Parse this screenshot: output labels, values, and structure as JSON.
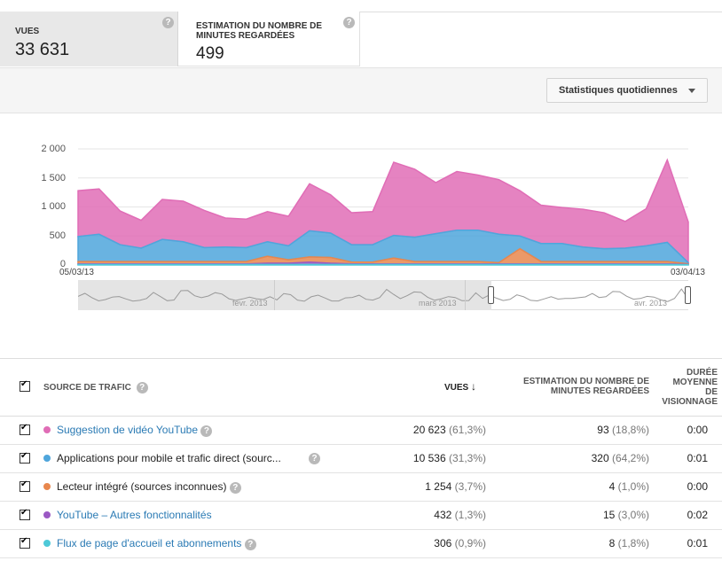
{
  "metrics": {
    "views": {
      "label": "VUES",
      "value": "33 631"
    },
    "minutes": {
      "label_line1": "ESTIMATION DU NOMBRE DE",
      "label_line2": "MINUTES REGARDÉES",
      "value": "499"
    }
  },
  "toolbar": {
    "period_dropdown": "Statistiques quotidiennes"
  },
  "chart": {
    "y_ticks": [
      "2 000",
      "1 500",
      "1 000",
      "500",
      "0"
    ],
    "x_start": "05/03/13",
    "x_end": "03/04/13",
    "timeline_labels": [
      "févr. 2013",
      "mars 2013",
      "avr. 2013"
    ]
  },
  "chart_data": {
    "type": "area",
    "x": [
      "05/03",
      "06/03",
      "07/03",
      "08/03",
      "09/03",
      "10/03",
      "11/03",
      "12/03",
      "13/03",
      "14/03",
      "15/03",
      "16/03",
      "17/03",
      "18/03",
      "19/03",
      "20/03",
      "21/03",
      "22/03",
      "23/03",
      "24/03",
      "25/03",
      "26/03",
      "27/03",
      "28/03",
      "29/03",
      "30/03",
      "31/03",
      "01/04",
      "02/04",
      "03/04"
    ],
    "stacked": true,
    "ylim": [
      0,
      2000
    ],
    "series": [
      {
        "name": "Suggestion de vidéo YouTube",
        "color": "#e06db6",
        "values": [
          790,
          780,
          580,
          480,
          690,
          700,
          640,
          500,
          490,
          520,
          510,
          810,
          660,
          550,
          570,
          1260,
          1170,
          880,
          1010,
          950,
          940,
          780,
          660,
          620,
          650,
          620,
          460,
          640,
          1420,
          700
        ]
      },
      {
        "name": "Applications pour mobile et trafic direct (sources inconnues)",
        "color": "#4fa6dc",
        "values": [
          430,
          470,
          290,
          230,
          380,
          340,
          240,
          250,
          240,
          250,
          240,
          450,
          420,
          300,
          300,
          390,
          420,
          480,
          540,
          540,
          490,
          220,
          310,
          310,
          250,
          220,
          230,
          270,
          330,
          20
        ]
      },
      {
        "name": "Lecteur intégré (sources inconnues)",
        "color": "#e8874d",
        "values": [
          40,
          40,
          40,
          40,
          40,
          40,
          40,
          40,
          40,
          120,
          60,
          90,
          100,
          30,
          30,
          100,
          40,
          40,
          40,
          40,
          20,
          260,
          40,
          40,
          40,
          40,
          40,
          40,
          40,
          10
        ]
      },
      {
        "name": "YouTube – Autres fonctionnalités",
        "color": "#9b59c4",
        "values": [
          10,
          10,
          10,
          10,
          10,
          10,
          10,
          10,
          10,
          20,
          20,
          40,
          20,
          10,
          10,
          10,
          10,
          10,
          10,
          10,
          10,
          10,
          10,
          10,
          10,
          10,
          10,
          10,
          10,
          5
        ]
      },
      {
        "name": "Flux de page d'accueil et abonnements",
        "color": "#4ec9d8",
        "values": [
          10,
          10,
          10,
          10,
          10,
          10,
          10,
          10,
          10,
          10,
          10,
          10,
          10,
          10,
          10,
          10,
          10,
          10,
          10,
          10,
          10,
          10,
          10,
          10,
          10,
          10,
          10,
          10,
          10,
          5
        ]
      }
    ]
  },
  "table": {
    "headers": {
      "source": "SOURCE DE TRAFIC",
      "views": "VUES",
      "minutes_line1": "ESTIMATION DU NOMBRE DE",
      "minutes_line2": "MINUTES REGARDÉES",
      "duration_line1": "DURÉE",
      "duration_line2": "MOYENNE",
      "duration_line3": "DE",
      "duration_line4": "VISIONNAGE"
    },
    "rows": [
      {
        "name": "Suggestion de vidéo YouTube",
        "views": "20 623",
        "views_pct": "(61,3%)",
        "minutes": "93",
        "minutes_pct": "(18,8%)",
        "duration": "0:00",
        "color": "#e06db6",
        "link": true
      },
      {
        "name": "Applications pour mobile et trafic direct (sourc...",
        "views": "10 536",
        "views_pct": "(31,3%)",
        "minutes": "320",
        "minutes_pct": "(64,2%)",
        "duration": "0:01",
        "color": "#4fa6dc",
        "link": false
      },
      {
        "name": "Lecteur intégré (sources inconnues)",
        "views": "1 254",
        "views_pct": "(3,7%)",
        "minutes": "4",
        "minutes_pct": "(1,0%)",
        "duration": "0:00",
        "color": "#e8874d",
        "link": false
      },
      {
        "name": "YouTube – Autres fonctionnalités",
        "views": "432",
        "views_pct": "(1,3%)",
        "minutes": "15",
        "minutes_pct": "(3,0%)",
        "duration": "0:02",
        "color": "#9b59c4",
        "link": true
      },
      {
        "name": "Flux de page d'accueil et abonnements",
        "views": "306",
        "views_pct": "(0,9%)",
        "minutes": "8",
        "minutes_pct": "(1,8%)",
        "duration": "0:01",
        "color": "#4ec9d8",
        "link": true
      }
    ]
  }
}
